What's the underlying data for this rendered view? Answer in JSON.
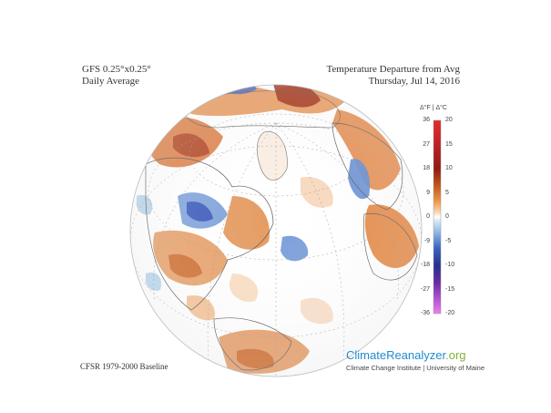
{
  "header": {
    "model": "GFS 0.25°x0.25°",
    "average": "Daily Average",
    "title": "Temperature Departure from Avg",
    "date": "Thursday, Jul 14, 2016"
  },
  "footer": {
    "baseline": "CFSR 1979-2000 Baseline",
    "brand_main": "ClimateReanalyzer",
    "brand_suffix": ".org",
    "brand_sub": "Climate Change Institute | University of Maine"
  },
  "legend": {
    "title": "Δ°F  |  Δ°C",
    "f_ticks": [
      "36",
      "27",
      "18",
      "9",
      "0",
      "-9",
      "-18",
      "-27",
      "-36"
    ],
    "c_ticks": [
      "20",
      "15",
      "10",
      "5",
      "0",
      "-5",
      "-10",
      "-15",
      "-20"
    ],
    "colors": [
      "#d7191c",
      "#b2182b",
      "#8b1a0e",
      "#c1440e",
      "#e8833a",
      "#f6c08d",
      "#ffffff",
      "#a9cbe8",
      "#5b8fd1",
      "#2b3fa3",
      "#4b1a8a",
      "#a02ab8",
      "#e070e0"
    ]
  },
  "map": {
    "projection": "orthographic-north-atlantic",
    "ocean_color": "#ffffff",
    "warm_color": "#e8833a",
    "cool_color": "#5b8fd1"
  }
}
